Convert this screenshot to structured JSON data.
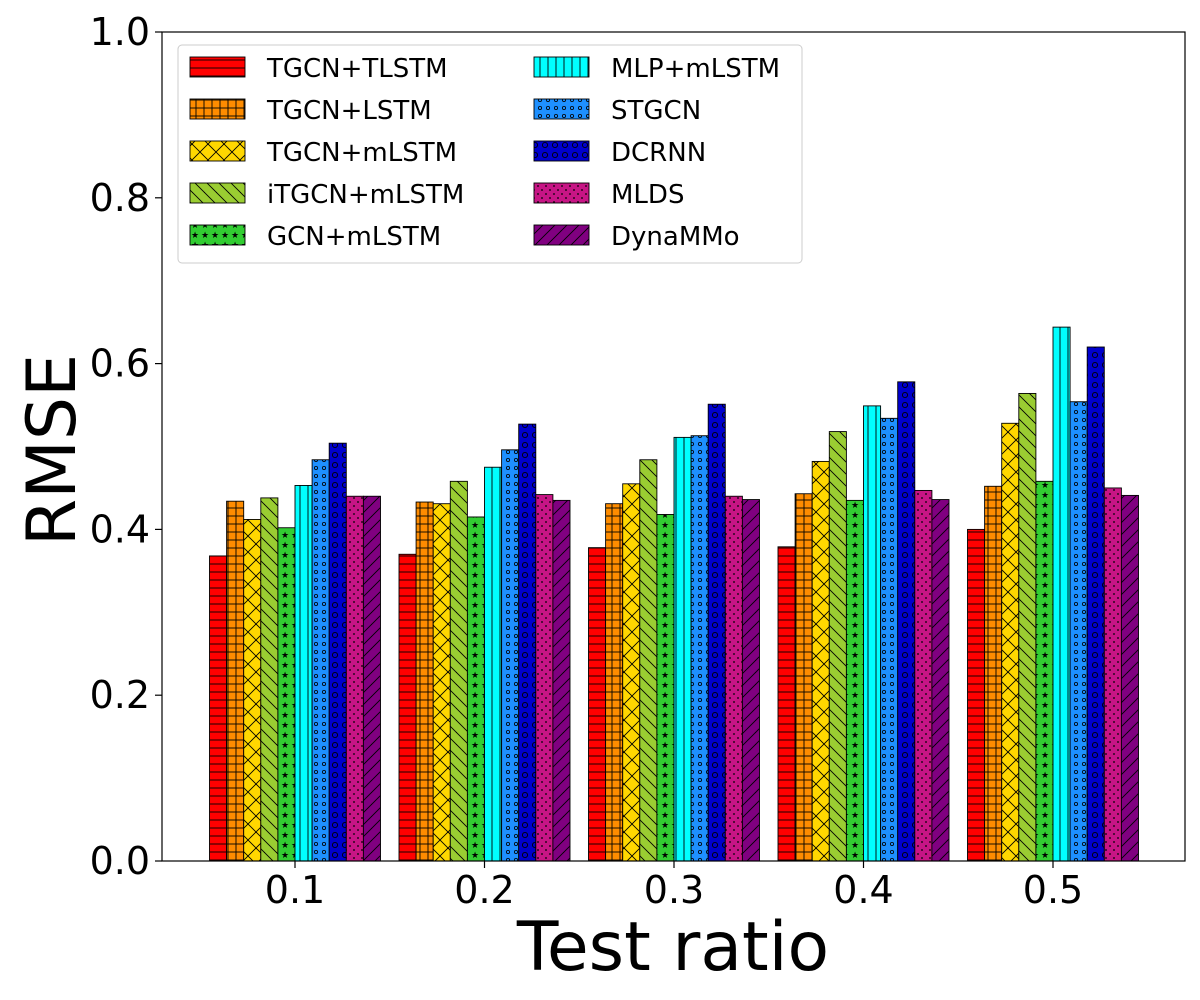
{
  "chart_data": {
    "type": "bar",
    "title": "",
    "xlabel": "Test ratio",
    "ylabel": "RMSE",
    "categories": [
      "0.1",
      "0.2",
      "0.3",
      "0.4",
      "0.5"
    ],
    "ylim": [
      0,
      1.0
    ],
    "yticks": [
      "0.0",
      "0.2",
      "0.4",
      "0.6",
      "0.8",
      "1.0"
    ],
    "legend_position": "top-left",
    "series": [
      {
        "name": "TGCN+TLSTM",
        "color": "#ff0000",
        "pattern": "hlines",
        "values": [
          0.368,
          0.37,
          0.378,
          0.379,
          0.4
        ]
      },
      {
        "name": "TGCN+LSTM",
        "color": "#ff8c00",
        "pattern": "grid",
        "values": [
          0.434,
          0.433,
          0.431,
          0.443,
          0.452
        ]
      },
      {
        "name": "TGCN+mLSTM",
        "color": "#ffd700",
        "pattern": "crosshatch",
        "values": [
          0.412,
          0.431,
          0.455,
          0.482,
          0.528
        ]
      },
      {
        "name": "iTGCN+mLSTM",
        "color": "#9acd32",
        "pattern": "backslash",
        "values": [
          0.438,
          0.458,
          0.484,
          0.518,
          0.564
        ]
      },
      {
        "name": "GCN+mLSTM",
        "color": "#32cd32",
        "pattern": "stars",
        "values": [
          0.402,
          0.415,
          0.418,
          0.435,
          0.458
        ]
      },
      {
        "name": "MLP+mLSTM",
        "color": "#00ffff",
        "pattern": "vlines",
        "values": [
          0.453,
          0.475,
          0.511,
          0.549,
          0.644
        ]
      },
      {
        "name": "STGCN",
        "color": "#1e90ff",
        "pattern": "smallcircles",
        "values": [
          0.484,
          0.496,
          0.513,
          0.534,
          0.554
        ]
      },
      {
        "name": "DCRNN",
        "color": "#0000cd",
        "pattern": "bigcircles",
        "values": [
          0.504,
          0.527,
          0.551,
          0.578,
          0.62
        ]
      },
      {
        "name": "MLDS",
        "color": "#c71585",
        "pattern": "dots",
        "values": [
          0.44,
          0.442,
          0.44,
          0.447,
          0.45
        ]
      },
      {
        "name": "DynaMMo",
        "color": "#800080",
        "pattern": "slash",
        "values": [
          0.44,
          0.435,
          0.436,
          0.436,
          0.441
        ]
      }
    ]
  }
}
